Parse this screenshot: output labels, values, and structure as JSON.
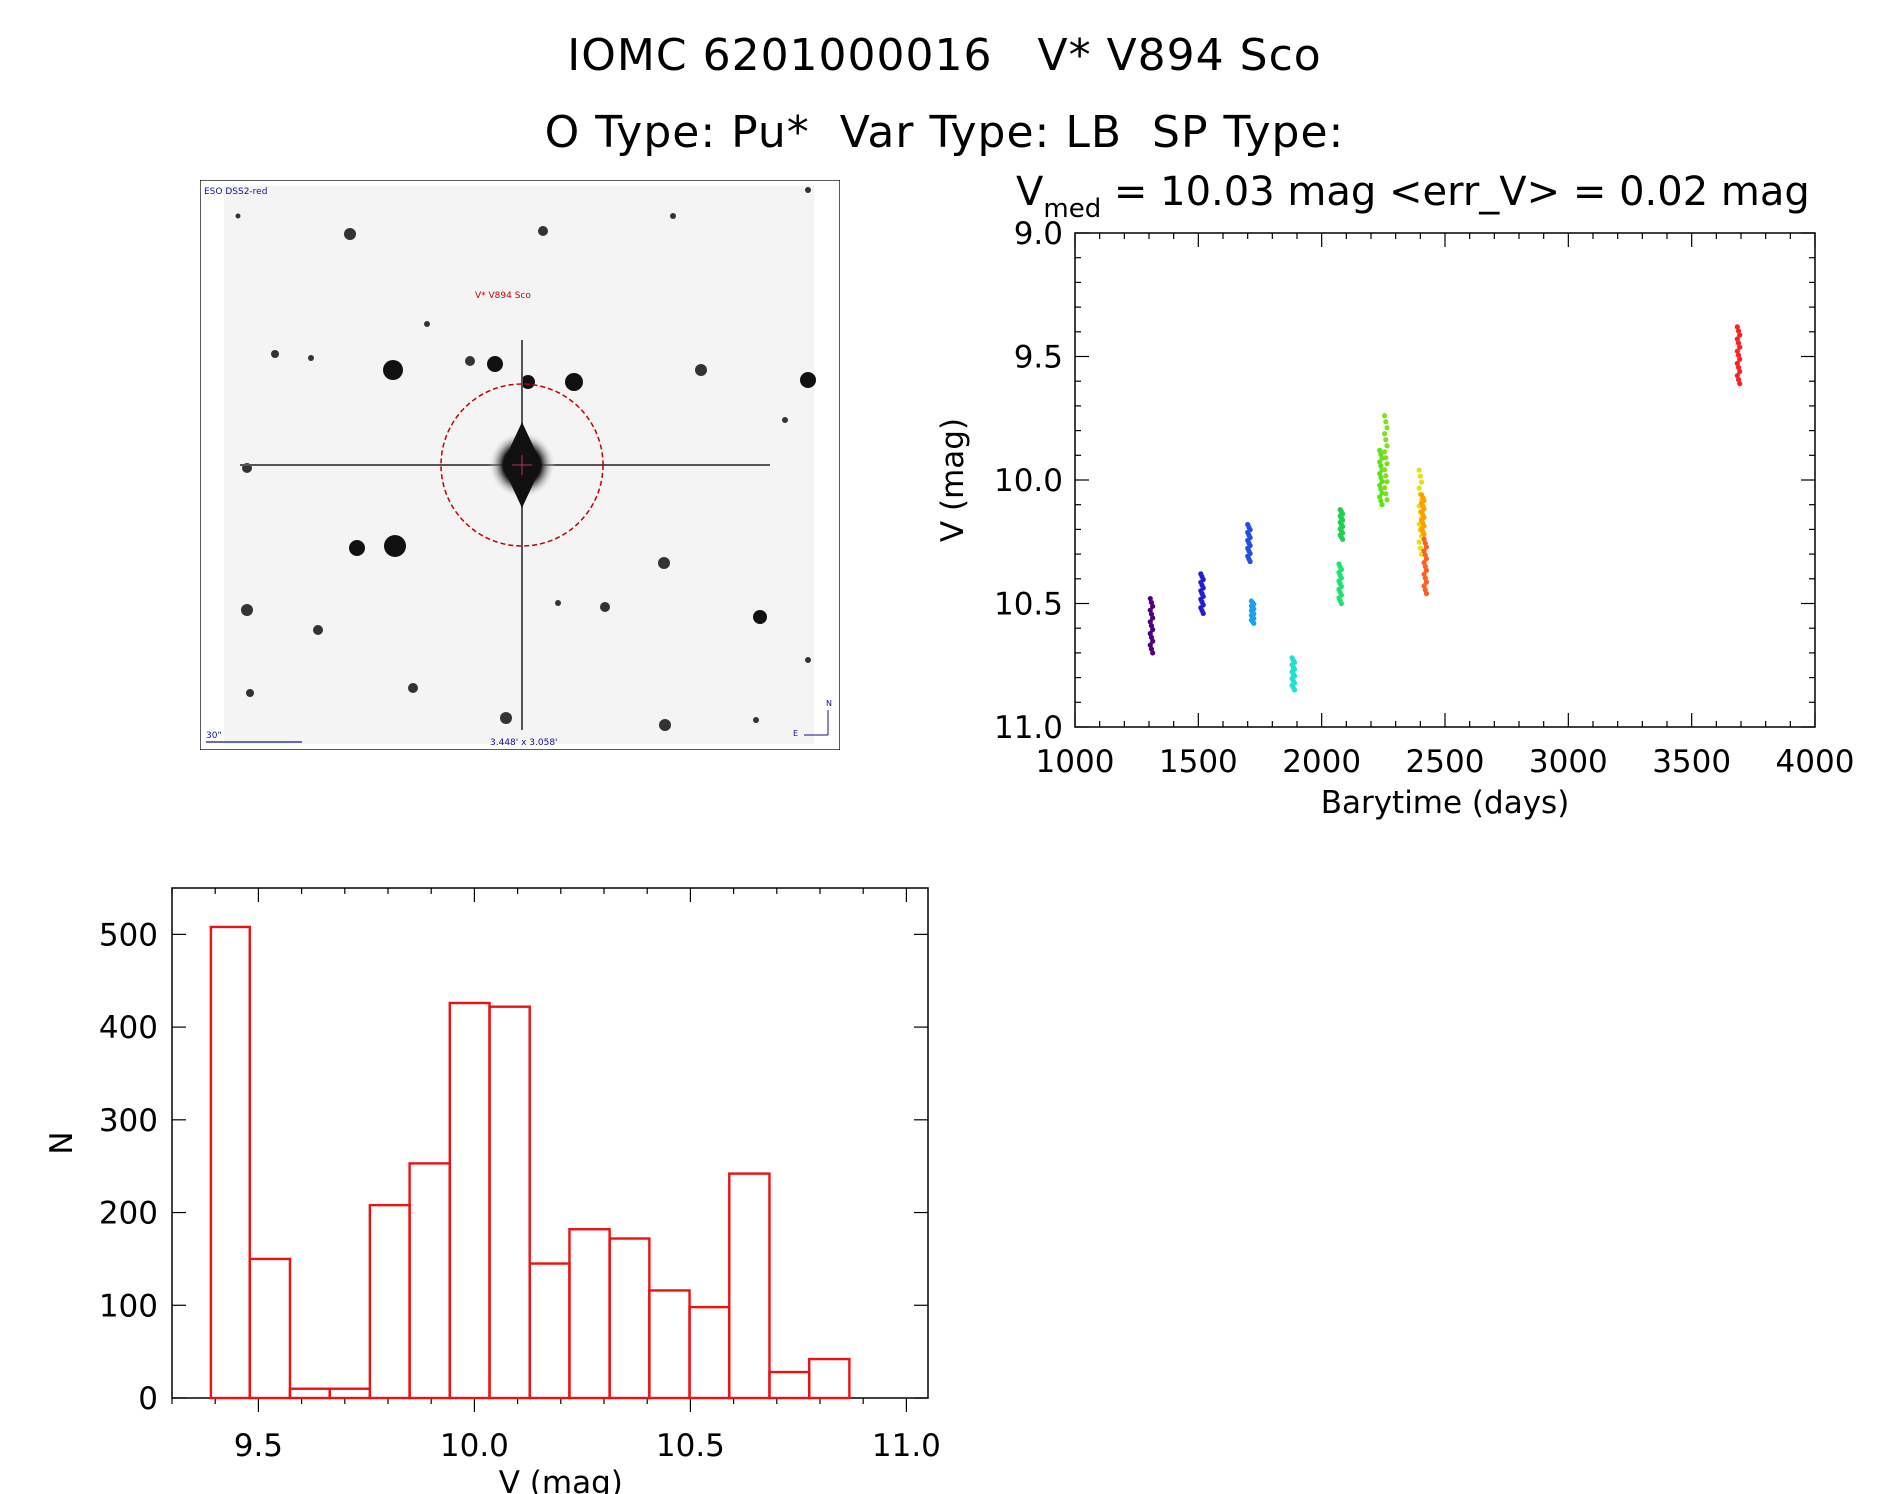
{
  "header": {
    "title_line1": "IOMC 6201000016   V* V894 Sco",
    "title_line2": "O Type: Pu*  Var Type: LB  SP Type:"
  },
  "image_panel": {
    "survey_label": "ESO DSS2-red",
    "target_label": "V* V894 Sco",
    "scale_label": "30\"",
    "fov_label": "3.448' x 3.058'",
    "compass_n": "N",
    "compass_e": "E"
  },
  "chart_data": [
    {
      "type": "scatter",
      "title_prefix": "V",
      "title_sub": "med",
      "title_rest": " = 10.03 mag <err_V> = 0.02 mag",
      "xlabel": "Barytime (days)",
      "ylabel": "V (mag)",
      "xlim": [
        1000,
        4000
      ],
      "ylim": [
        11.0,
        9.0
      ],
      "y_inverted": true,
      "xticks": [
        1000,
        1500,
        2000,
        2500,
        3000,
        3500,
        4000
      ],
      "xtick_labels": [
        "1000",
        "1500",
        "2000",
        "2500",
        "3000",
        "3500",
        "4000"
      ],
      "yticks": [
        9.0,
        9.5,
        10.0,
        10.5,
        11.0
      ],
      "ytick_labels": [
        "9.0",
        "9.5",
        "10.0",
        "10.5",
        "11.0"
      ],
      "series": [
        {
          "name": "seg1",
          "x": 1310,
          "ymin": 10.48,
          "ymax": 10.7,
          "color": "#4b0082"
        },
        {
          "name": "seg2",
          "x": 1515,
          "ymin": 10.38,
          "ymax": 10.54,
          "color": "#2020d0"
        },
        {
          "name": "seg3",
          "x": 1705,
          "ymin": 10.18,
          "ymax": 10.33,
          "color": "#2050e0"
        },
        {
          "name": "seg4",
          "x": 1720,
          "ymin": 10.49,
          "ymax": 10.58,
          "color": "#20a0e8"
        },
        {
          "name": "seg5",
          "x": 1885,
          "ymin": 10.72,
          "ymax": 10.85,
          "color": "#20e0d0"
        },
        {
          "name": "seg6",
          "x": 2075,
          "ymin": 10.34,
          "ymax": 10.5,
          "color": "#20e070"
        },
        {
          "name": "seg7",
          "x": 2080,
          "ymin": 10.12,
          "ymax": 10.24,
          "color": "#20d050"
        },
        {
          "name": "seg8",
          "x": 2240,
          "ymin": 9.88,
          "ymax": 10.1,
          "color": "#60e020"
        },
        {
          "name": "seg9",
          "x": 2260,
          "ymin": 9.74,
          "ymax": 10.08,
          "color": "#80e020"
        },
        {
          "name": "seg10",
          "x": 2400,
          "ymin": 9.96,
          "ymax": 10.3,
          "color": "#e0e020"
        },
        {
          "name": "seg11",
          "x": 2410,
          "ymin": 10.06,
          "ymax": 10.22,
          "color": "#ffa000"
        },
        {
          "name": "seg12",
          "x": 2420,
          "ymin": 10.24,
          "ymax": 10.46,
          "color": "#ff6020"
        },
        {
          "name": "seg13",
          "x": 3690,
          "ymin": 9.38,
          "ymax": 9.61,
          "color": "#ff2020"
        }
      ]
    },
    {
      "type": "bar",
      "subtype": "histogram",
      "xlabel": "V (mag)",
      "ylabel": "N",
      "xlim": [
        9.3,
        11.05
      ],
      "ylim": [
        0,
        550
      ],
      "xticks": [
        9.5,
        10.0,
        10.5,
        11.0
      ],
      "xtick_labels": [
        "9.5",
        "10.0",
        "10.5",
        "11.0"
      ],
      "yticks": [
        0,
        100,
        200,
        300,
        400,
        500
      ],
      "ytick_labels": [
        "0",
        "100",
        "200",
        "300",
        "400",
        "500"
      ],
      "bin_edges": [
        9.39,
        9.48,
        9.573,
        9.665,
        9.758,
        9.85,
        9.943,
        10.035,
        10.128,
        10.22,
        10.313,
        10.405,
        10.498,
        10.59,
        10.683,
        10.775,
        10.868
      ],
      "values": [
        508,
        150,
        10,
        10,
        208,
        253,
        426,
        422,
        145,
        182,
        172,
        116,
        98,
        242,
        28,
        42
      ],
      "bar_color": "#ee1111"
    }
  ]
}
